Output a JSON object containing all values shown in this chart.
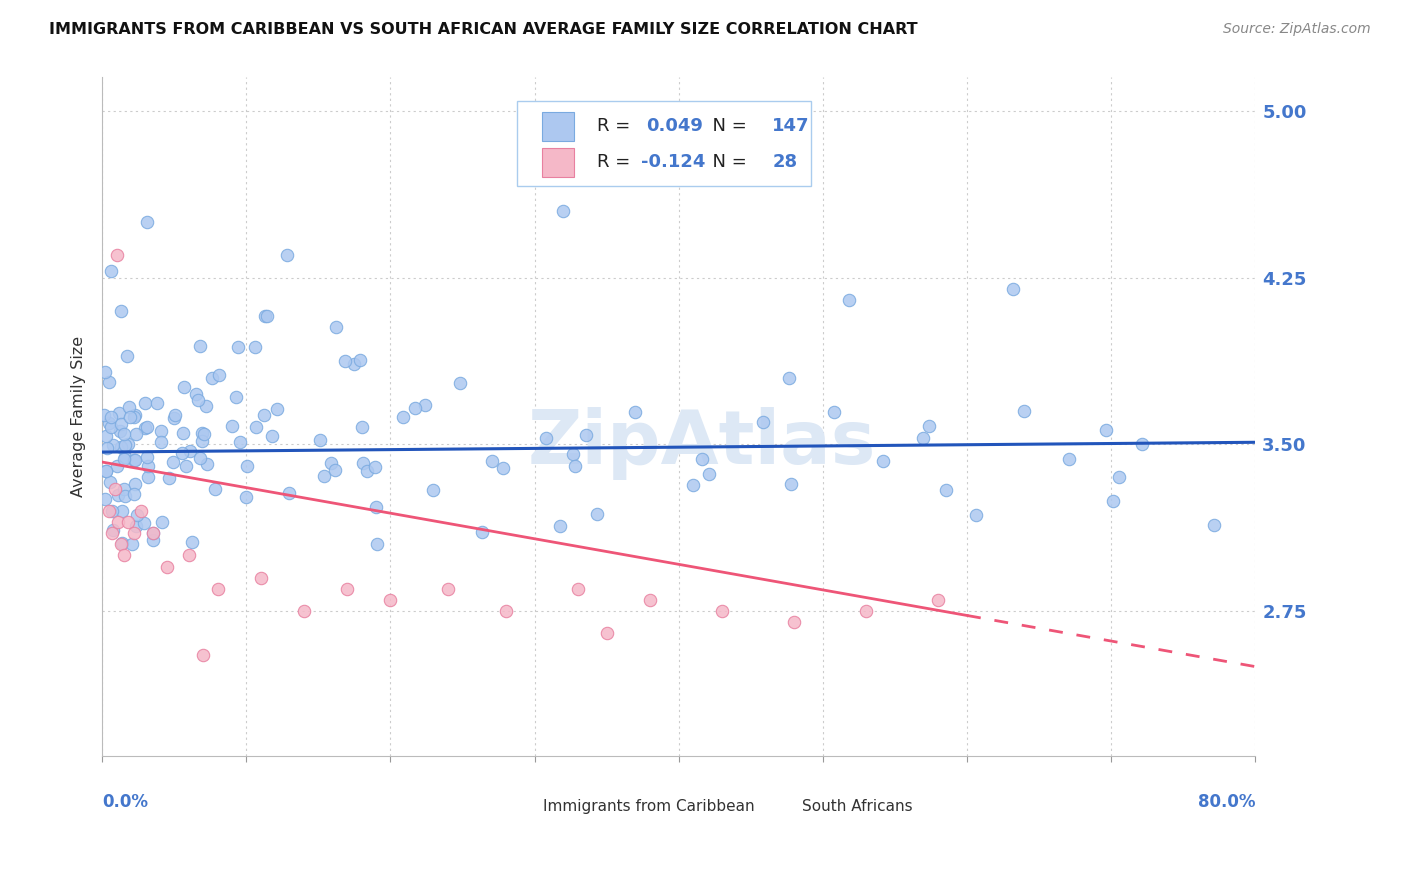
{
  "title": "IMMIGRANTS FROM CARIBBEAN VS SOUTH AFRICAN AVERAGE FAMILY SIZE CORRELATION CHART",
  "source": "Source: ZipAtlas.com",
  "ylabel": "Average Family Size",
  "y_ticks": [
    2.75,
    3.5,
    4.25,
    5.0
  ],
  "x_range": [
    0.0,
    80.0
  ],
  "y_range": [
    2.1,
    5.15
  ],
  "caribbean_R": 0.049,
  "caribbean_N": 147,
  "south_african_R": -0.124,
  "south_african_N": 28,
  "caribbean_color": "#adc8f0",
  "caribbean_edge_color": "#7aaae0",
  "south_african_color": "#f5b8c8",
  "south_african_edge_color": "#e880a0",
  "caribbean_line_color": "#2255bb",
  "south_african_line_color": "#ee5577",
  "right_label_color": "#4477cc",
  "watermark_color": "#dde8f5",
  "carib_trend_intercept": 3.465,
  "carib_trend_slope": 0.00055,
  "sa_trend_intercept": 3.42,
  "sa_trend_slope": -0.0115,
  "sa_dash_start": 60.0
}
